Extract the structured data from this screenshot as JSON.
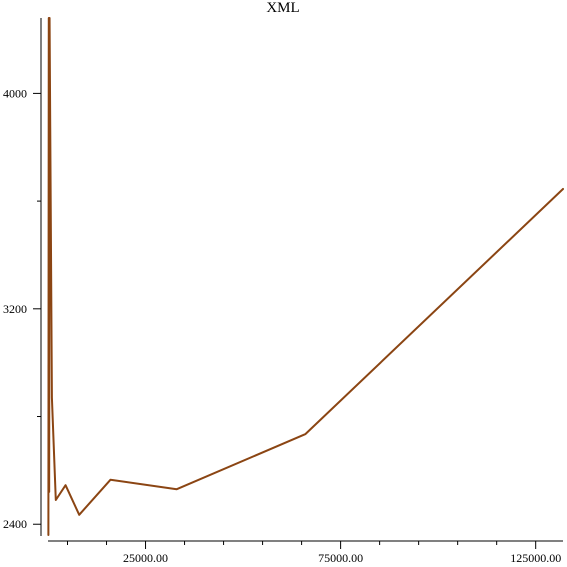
{
  "chart_data": {
    "type": "line",
    "title": "XML",
    "xlabel": "",
    "ylabel": "",
    "xlim": [
      0,
      132000
    ],
    "ylim": [
      2360,
      4280
    ],
    "x_ticks": [
      {
        "value": 25000,
        "label": "25000.00"
      },
      {
        "value": 75000,
        "label": "75000.00"
      },
      {
        "value": 125000,
        "label": "125000.00"
      }
    ],
    "x_minor_ticks": [
      5000,
      15000,
      35000,
      45000,
      55000,
      65000,
      85000,
      95000,
      105000,
      115000
    ],
    "y_ticks": [
      {
        "value": 2400,
        "label": "2400"
      },
      {
        "value": 3200,
        "label": "3200"
      },
      {
        "value": 4000,
        "label": "4000"
      }
    ],
    "y_minor_ticks": [
      2800,
      3600
    ],
    "grid": false,
    "series": [
      {
        "color": "#8B4513",
        "points": [
          [
            100,
            2360
          ],
          [
            200,
            4280
          ],
          [
            300,
            2520
          ],
          [
            400,
            4280
          ],
          [
            1000,
            2870
          ],
          [
            2000,
            2490
          ],
          [
            4500,
            2545
          ],
          [
            8000,
            2435
          ],
          [
            16000,
            2565
          ],
          [
            33000,
            2530
          ],
          [
            66000,
            2735
          ],
          [
            132000,
            3645
          ]
        ]
      }
    ]
  }
}
